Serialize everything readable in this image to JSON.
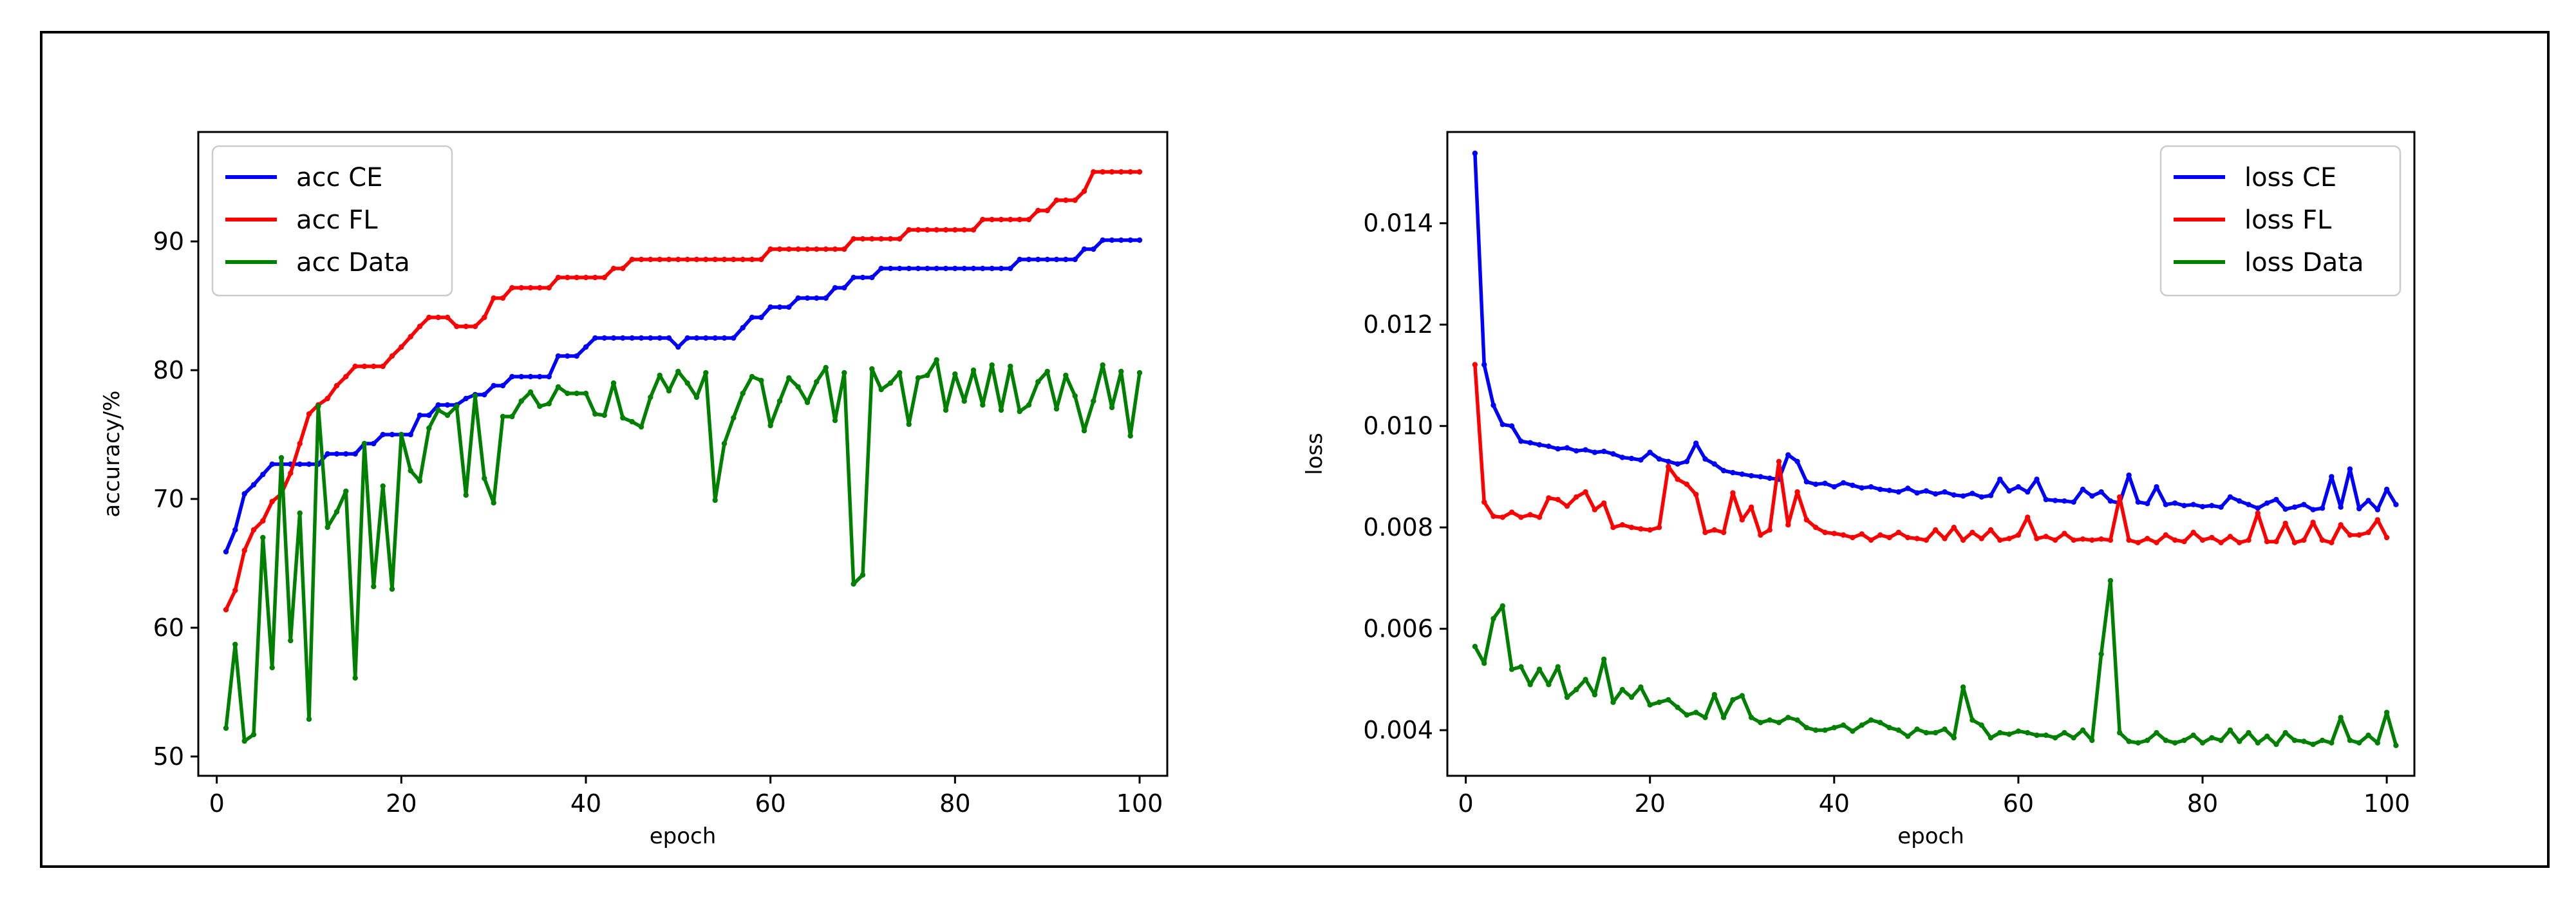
{
  "chart_data": [
    {
      "type": "line",
      "title": "",
      "xlabel": "epoch",
      "ylabel": "accuracy/%",
      "xlim": [
        -2,
        103
      ],
      "ylim": [
        48.5,
        98.5
      ],
      "xticks": [
        0,
        20,
        40,
        60,
        80,
        100
      ],
      "xtick_labels": [
        "0",
        "20",
        "40",
        "60",
        "80",
        "100"
      ],
      "yticks": [
        50,
        60,
        70,
        80,
        90
      ],
      "ytick_labels": [
        "50",
        "60",
        "70",
        "80",
        "90"
      ],
      "legend": "top-left",
      "grid": false,
      "x_start": 1,
      "series": [
        {
          "name": "acc CE",
          "color": "#0000ff",
          "values": [
            65.9,
            67.6,
            70.4,
            71.1,
            71.9,
            72.7,
            72.7,
            72.7,
            72.7,
            72.7,
            72.7,
            73.5,
            73.5,
            73.5,
            73.5,
            74.3,
            74.3,
            75.0,
            75.0,
            75.0,
            75.0,
            76.5,
            76.5,
            77.3,
            77.3,
            77.3,
            77.8,
            78.1,
            78.1,
            78.8,
            78.8,
            79.5,
            79.5,
            79.5,
            79.5,
            79.5,
            81.1,
            81.1,
            81.1,
            81.8,
            82.5,
            82.5,
            82.5,
            82.5,
            82.5,
            82.5,
            82.5,
            82.5,
            82.5,
            81.8,
            82.5,
            82.5,
            82.5,
            82.5,
            82.5,
            82.5,
            83.3,
            84.1,
            84.1,
            84.9,
            84.9,
            84.9,
            85.6,
            85.6,
            85.6,
            85.6,
            86.4,
            86.4,
            87.2,
            87.2,
            87.2,
            87.9,
            87.9,
            87.9,
            87.9,
            87.9,
            87.9,
            87.9,
            87.9,
            87.9,
            87.9,
            87.9,
            87.9,
            87.9,
            87.9,
            87.9,
            88.6,
            88.6,
            88.6,
            88.6,
            88.6,
            88.6,
            88.6,
            89.4,
            89.4,
            90.1,
            90.1,
            90.1,
            90.1,
            90.1
          ]
        },
        {
          "name": "acc FL",
          "color": "#ff0000",
          "values": [
            61.4,
            62.9,
            66.0,
            67.6,
            68.3,
            69.8,
            70.4,
            72.0,
            74.3,
            76.6,
            77.3,
            77.8,
            78.8,
            79.5,
            80.3,
            80.3,
            80.3,
            80.3,
            81.1,
            81.8,
            82.6,
            83.4,
            84.1,
            84.1,
            84.1,
            83.4,
            83.4,
            83.4,
            84.1,
            85.6,
            85.6,
            86.4,
            86.4,
            86.4,
            86.4,
            86.4,
            87.2,
            87.2,
            87.2,
            87.2,
            87.2,
            87.2,
            87.9,
            87.9,
            88.6,
            88.6,
            88.6,
            88.6,
            88.6,
            88.6,
            88.6,
            88.6,
            88.6,
            88.6,
            88.6,
            88.6,
            88.6,
            88.6,
            88.6,
            89.4,
            89.4,
            89.4,
            89.4,
            89.4,
            89.4,
            89.4,
            89.4,
            89.4,
            90.2,
            90.2,
            90.2,
            90.2,
            90.2,
            90.2,
            90.9,
            90.9,
            90.9,
            90.9,
            90.9,
            90.9,
            90.9,
            90.9,
            91.7,
            91.7,
            91.7,
            91.7,
            91.7,
            91.7,
            92.4,
            92.4,
            93.2,
            93.2,
            93.2,
            93.9,
            95.4,
            95.4,
            95.4,
            95.4,
            95.4,
            95.4
          ]
        },
        {
          "name": "acc Data",
          "color": "#008000",
          "values": [
            52.2,
            58.7,
            51.2,
            51.7,
            67.0,
            56.9,
            73.2,
            59.0,
            68.9,
            52.9,
            77.2,
            67.8,
            69.0,
            70.6,
            56.1,
            74.3,
            63.2,
            71.0,
            63.0,
            75.0,
            72.2,
            71.4,
            75.5,
            76.9,
            76.5,
            77.2,
            70.3,
            78.0,
            71.6,
            69.7,
            76.4,
            76.4,
            77.6,
            78.3,
            77.2,
            77.4,
            78.7,
            78.2,
            78.2,
            78.2,
            76.6,
            76.5,
            79.0,
            76.3,
            76.0,
            75.6,
            77.9,
            79.6,
            78.4,
            79.9,
            79.0,
            77.9,
            79.8,
            69.9,
            74.3,
            76.3,
            78.2,
            79.5,
            79.2,
            75.7,
            77.6,
            79.4,
            78.7,
            77.5,
            79.1,
            80.2,
            76.1,
            79.8,
            63.4,
            64.1,
            80.1,
            78.5,
            79.0,
            79.8,
            75.8,
            79.4,
            79.6,
            80.8,
            76.9,
            79.7,
            77.6,
            80.0,
            77.3,
            80.4,
            76.9,
            80.3,
            76.8,
            77.3,
            79.1,
            79.9,
            77.0,
            79.6,
            78.0,
            75.3,
            77.6,
            80.4,
            77.1,
            79.9,
            74.9,
            79.8
          ]
        }
      ]
    },
    {
      "type": "line",
      "title": "",
      "xlabel": "epoch",
      "ylabel": "loss",
      "xlim": [
        -2,
        103
      ],
      "ylim": [
        0.0031,
        0.0158
      ],
      "xticks": [
        0,
        20,
        40,
        60,
        80,
        100
      ],
      "xtick_labels": [
        "0",
        "20",
        "40",
        "60",
        "80",
        "100"
      ],
      "yticks": [
        0.004,
        0.006,
        0.008,
        0.01,
        0.012,
        0.014
      ],
      "ytick_labels": [
        "0.004",
        "0.006",
        "0.008",
        "0.010",
        "0.012",
        "0.014"
      ],
      "legend": "top-right",
      "grid": false,
      "x_start": 1,
      "series": [
        {
          "name": "loss CE",
          "color": "#0000ff",
          "values": [
            0.01538,
            0.01121,
            0.01041,
            0.01003,
            0.01,
            0.0097,
            0.00967,
            0.00963,
            0.0096,
            0.00955,
            0.00957,
            0.00951,
            0.00953,
            0.00948,
            0.0095,
            0.00945,
            0.00938,
            0.00936,
            0.00933,
            0.00948,
            0.00935,
            0.0093,
            0.00925,
            0.0093,
            0.00966,
            0.00935,
            0.00925,
            0.00912,
            0.00908,
            0.00905,
            0.00902,
            0.009,
            0.00897,
            0.00895,
            0.00943,
            0.0093,
            0.0089,
            0.00885,
            0.00887,
            0.0088,
            0.00888,
            0.00883,
            0.00878,
            0.0088,
            0.00875,
            0.00873,
            0.0087,
            0.00877,
            0.00868,
            0.00872,
            0.00866,
            0.0087,
            0.00864,
            0.00862,
            0.00867,
            0.0086,
            0.00863,
            0.00895,
            0.00872,
            0.0088,
            0.0087,
            0.00895,
            0.00855,
            0.00853,
            0.00852,
            0.0085,
            0.00875,
            0.00862,
            0.0087,
            0.00852,
            0.00848,
            0.00903,
            0.0085,
            0.00847,
            0.0088,
            0.00845,
            0.00848,
            0.00843,
            0.00845,
            0.00841,
            0.00843,
            0.0084,
            0.0086,
            0.00852,
            0.00845,
            0.00838,
            0.00848,
            0.00855,
            0.00836,
            0.0084,
            0.00845,
            0.00835,
            0.00838,
            0.009,
            0.0084,
            0.00915,
            0.00837,
            0.00853,
            0.00835,
            0.00875,
            0.00845
          ]
        },
        {
          "name": "loss FL",
          "color": "#ff0000",
          "values": [
            0.01121,
            0.0085,
            0.00822,
            0.0082,
            0.0083,
            0.0082,
            0.00825,
            0.0082,
            0.00858,
            0.00855,
            0.00842,
            0.0086,
            0.0087,
            0.00835,
            0.00848,
            0.008,
            0.00805,
            0.008,
            0.00797,
            0.00795,
            0.008,
            0.0092,
            0.00895,
            0.00885,
            0.00865,
            0.0079,
            0.00795,
            0.0079,
            0.00868,
            0.00815,
            0.0084,
            0.00785,
            0.00795,
            0.0093,
            0.00805,
            0.0087,
            0.00815,
            0.008,
            0.0079,
            0.00788,
            0.00785,
            0.0078,
            0.00787,
            0.00775,
            0.00785,
            0.0078,
            0.0079,
            0.0078,
            0.00778,
            0.00775,
            0.00795,
            0.00778,
            0.008,
            0.00775,
            0.0079,
            0.00778,
            0.00795,
            0.00775,
            0.00778,
            0.00785,
            0.0082,
            0.00778,
            0.00782,
            0.00775,
            0.00788,
            0.00775,
            0.00777,
            0.00775,
            0.00777,
            0.00775,
            0.0086,
            0.00775,
            0.0077,
            0.00778,
            0.0077,
            0.00785,
            0.00775,
            0.00772,
            0.0079,
            0.00775,
            0.0078,
            0.0077,
            0.00782,
            0.0077,
            0.00775,
            0.00828,
            0.00772,
            0.00772,
            0.00808,
            0.0077,
            0.00775,
            0.0081,
            0.00775,
            0.0077,
            0.00805,
            0.00785,
            0.00785,
            0.0079,
            0.00815,
            0.0078
          ]
        },
        {
          "name": "loss Data",
          "color": "#008000",
          "values": [
            0.00565,
            0.00532,
            0.0062,
            0.00645,
            0.0052,
            0.00525,
            0.0049,
            0.0052,
            0.0049,
            0.00525,
            0.00465,
            0.0048,
            0.005,
            0.0047,
            0.0054,
            0.00455,
            0.0048,
            0.00465,
            0.00485,
            0.0045,
            0.00455,
            0.0046,
            0.00445,
            0.0043,
            0.00435,
            0.00425,
            0.0047,
            0.00425,
            0.0046,
            0.00468,
            0.00425,
            0.00415,
            0.0042,
            0.00415,
            0.00425,
            0.0042,
            0.00405,
            0.004,
            0.004,
            0.00405,
            0.0041,
            0.00398,
            0.0041,
            0.0042,
            0.00415,
            0.00405,
            0.004,
            0.00388,
            0.00402,
            0.00395,
            0.00395,
            0.00402,
            0.00385,
            0.00485,
            0.0042,
            0.0041,
            0.00385,
            0.00395,
            0.00392,
            0.00398,
            0.00395,
            0.0039,
            0.0039,
            0.00385,
            0.00395,
            0.00385,
            0.004,
            0.0038,
            0.0055,
            0.00695,
            0.00395,
            0.00378,
            0.00375,
            0.0038,
            0.00395,
            0.0038,
            0.00375,
            0.0038,
            0.0039,
            0.00375,
            0.00385,
            0.0038,
            0.004,
            0.00378,
            0.00395,
            0.00375,
            0.00388,
            0.00372,
            0.00395,
            0.0038,
            0.00378,
            0.00372,
            0.0038,
            0.00375,
            0.00425,
            0.0038,
            0.00375,
            0.0039,
            0.00375,
            0.00435,
            0.0037
          ]
        }
      ]
    }
  ]
}
